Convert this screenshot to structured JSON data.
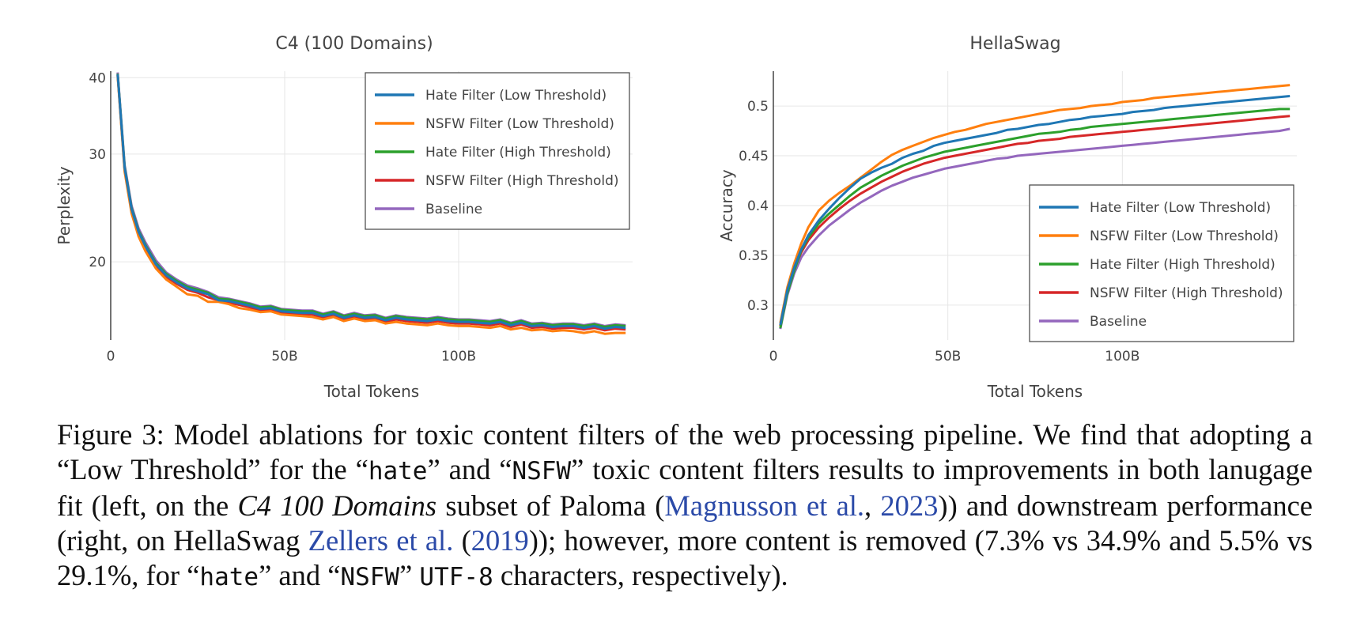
{
  "chart_data": [
    {
      "type": "line",
      "title": "C4 (100 Domains)",
      "xlabel": "Total Tokens",
      "ylabel": "Perplexity",
      "x_unit": "B tokens",
      "xlim": [
        0,
        150
      ],
      "ylim": [
        14.9,
        41
      ],
      "y_scale": "log",
      "xticks": [
        0,
        50,
        100
      ],
      "xtick_labels": [
        "0",
        "50B",
        "100B"
      ],
      "yticks": [
        20,
        30,
        40
      ],
      "ytick_labels": [
        "20",
        "30",
        "40"
      ],
      "grid": true,
      "legend_position": "top-right",
      "x": [
        2,
        4,
        6,
        8,
        10,
        13,
        16,
        19,
        22,
        25,
        28,
        31,
        34,
        37,
        40,
        43,
        46,
        49,
        52,
        55,
        58,
        61,
        64,
        67,
        70,
        73,
        76,
        79,
        82,
        85,
        88,
        91,
        94,
        97,
        100,
        103,
        106,
        109,
        112,
        115,
        118,
        121,
        124,
        127,
        130,
        133,
        136,
        139,
        142,
        145,
        148
      ],
      "series": [
        {
          "name": "Hate Filter (Low Threshold)",
          "color": "#1f77b4",
          "values": [
            40.5,
            28.5,
            24.4,
            22.4,
            21.2,
            19.8,
            19.0,
            18.5,
            18.1,
            17.9,
            17.7,
            17.3,
            17.25,
            17.1,
            16.95,
            16.75,
            16.8,
            16.6,
            16.55,
            16.5,
            16.5,
            16.3,
            16.45,
            16.2,
            16.35,
            16.2,
            16.25,
            16.05,
            16.2,
            16.1,
            16.05,
            16.0,
            16.1,
            16.0,
            15.95,
            15.95,
            15.9,
            15.85,
            15.95,
            15.75,
            15.9,
            15.7,
            15.75,
            15.65,
            15.7,
            15.7,
            15.6,
            15.7,
            15.55,
            15.65,
            15.6
          ]
        },
        {
          "name": "NSFW Filter (Low Threshold)",
          "color": "#ff7f0e",
          "values": [
            40.3,
            28.1,
            24.0,
            22.0,
            20.8,
            19.5,
            18.7,
            18.2,
            17.7,
            17.6,
            17.2,
            17.2,
            17.05,
            16.8,
            16.7,
            16.55,
            16.6,
            16.4,
            16.35,
            16.3,
            16.25,
            16.1,
            16.25,
            16.0,
            16.15,
            16.0,
            16.05,
            15.85,
            15.95,
            15.85,
            15.8,
            15.75,
            15.85,
            15.75,
            15.7,
            15.7,
            15.65,
            15.6,
            15.7,
            15.5,
            15.6,
            15.45,
            15.5,
            15.4,
            15.45,
            15.4,
            15.3,
            15.4,
            15.25,
            15.3,
            15.3
          ]
        },
        {
          "name": "Hate Filter (High Threshold)",
          "color": "#2ca02c",
          "values": [
            40.6,
            28.6,
            24.5,
            22.5,
            21.3,
            19.9,
            19.1,
            18.6,
            18.2,
            18.0,
            17.8,
            17.4,
            17.35,
            17.2,
            17.05,
            16.85,
            16.9,
            16.7,
            16.65,
            16.6,
            16.6,
            16.4,
            16.55,
            16.3,
            16.45,
            16.3,
            16.35,
            16.15,
            16.3,
            16.2,
            16.15,
            16.1,
            16.2,
            16.1,
            16.05,
            16.05,
            16.0,
            15.95,
            16.05,
            15.85,
            16.0,
            15.8,
            15.85,
            15.75,
            15.8,
            15.8,
            15.7,
            15.8,
            15.65,
            15.75,
            15.7
          ]
        },
        {
          "name": "NSFW Filter (High Threshold)",
          "color": "#d62728",
          "values": [
            40.4,
            28.3,
            24.2,
            22.2,
            21.0,
            19.7,
            18.9,
            18.4,
            18.0,
            17.8,
            17.5,
            17.3,
            17.15,
            17.0,
            16.85,
            16.65,
            16.7,
            16.5,
            16.45,
            16.4,
            16.4,
            16.2,
            16.35,
            16.1,
            16.25,
            16.1,
            16.15,
            15.95,
            16.1,
            16.0,
            15.95,
            15.9,
            16.0,
            15.9,
            15.85,
            15.85,
            15.8,
            15.75,
            15.85,
            15.65,
            15.8,
            15.6,
            15.65,
            15.55,
            15.6,
            15.6,
            15.5,
            15.6,
            15.45,
            15.55,
            15.5
          ]
        },
        {
          "name": "Baseline",
          "color": "#9467bd",
          "values": [
            40.8,
            28.8,
            24.7,
            22.7,
            21.5,
            20.1,
            19.2,
            18.7,
            18.3,
            18.1,
            17.85,
            17.5,
            17.4,
            17.25,
            17.1,
            16.9,
            16.95,
            16.75,
            16.7,
            16.65,
            16.65,
            16.45,
            16.6,
            16.35,
            16.5,
            16.35,
            16.4,
            16.2,
            16.35,
            16.25,
            16.2,
            16.15,
            16.25,
            16.15,
            16.1,
            16.1,
            16.05,
            16.0,
            16.1,
            15.9,
            16.05,
            15.85,
            15.9,
            15.8,
            15.85,
            15.85,
            15.75,
            15.85,
            15.7,
            15.8,
            15.75
          ]
        }
      ]
    },
    {
      "type": "line",
      "title": "HellaSwag",
      "xlabel": "Total Tokens",
      "ylabel": "Accuracy",
      "x_unit": "B tokens",
      "xlim": [
        0,
        150
      ],
      "ylim": [
        0.265,
        0.535
      ],
      "xticks": [
        0,
        50,
        100
      ],
      "xtick_labels": [
        "0",
        "50B",
        "100B"
      ],
      "yticks": [
        0.3,
        0.35,
        0.4,
        0.45,
        0.5
      ],
      "ytick_labels": [
        "0.3",
        "0.35",
        "0.4",
        "0.45",
        "0.5"
      ],
      "grid": true,
      "legend_position": "bottom-right",
      "x": [
        2,
        4,
        6,
        8,
        10,
        13,
        16,
        19,
        22,
        25,
        28,
        31,
        34,
        37,
        40,
        43,
        46,
        49,
        52,
        55,
        58,
        61,
        64,
        67,
        70,
        73,
        76,
        79,
        82,
        85,
        88,
        91,
        94,
        97,
        100,
        103,
        106,
        109,
        112,
        115,
        118,
        121,
        124,
        127,
        130,
        133,
        136,
        139,
        142,
        145,
        148
      ],
      "series": [
        {
          "name": "Hate Filter (Low Threshold)",
          "color": "#1f77b4",
          "values": [
            0.28,
            0.315,
            0.338,
            0.356,
            0.37,
            0.385,
            0.397,
            0.408,
            0.418,
            0.427,
            0.433,
            0.438,
            0.442,
            0.448,
            0.452,
            0.455,
            0.46,
            0.463,
            0.465,
            0.467,
            0.469,
            0.471,
            0.473,
            0.476,
            0.477,
            0.479,
            0.481,
            0.482,
            0.484,
            0.486,
            0.487,
            0.489,
            0.49,
            0.491,
            0.492,
            0.494,
            0.495,
            0.496,
            0.498,
            0.499,
            0.5,
            0.501,
            0.502,
            0.503,
            0.504,
            0.505,
            0.506,
            0.507,
            0.508,
            0.509,
            0.51
          ]
        },
        {
          "name": "NSFW Filter (Low Threshold)",
          "color": "#ff7f0e",
          "values": [
            0.282,
            0.318,
            0.342,
            0.362,
            0.378,
            0.395,
            0.405,
            0.413,
            0.42,
            0.428,
            0.436,
            0.444,
            0.451,
            0.456,
            0.46,
            0.464,
            0.468,
            0.471,
            0.474,
            0.476,
            0.479,
            0.482,
            0.484,
            0.486,
            0.488,
            0.49,
            0.492,
            0.494,
            0.496,
            0.497,
            0.498,
            0.5,
            0.501,
            0.502,
            0.504,
            0.505,
            0.506,
            0.508,
            0.509,
            0.51,
            0.511,
            0.512,
            0.513,
            0.514,
            0.515,
            0.516,
            0.517,
            0.518,
            0.519,
            0.52,
            0.521
          ]
        },
        {
          "name": "Hate Filter (High Threshold)",
          "color": "#2ca02c",
          "values": [
            0.277,
            0.312,
            0.335,
            0.355,
            0.368,
            0.382,
            0.392,
            0.401,
            0.41,
            0.418,
            0.424,
            0.43,
            0.435,
            0.44,
            0.444,
            0.448,
            0.451,
            0.454,
            0.456,
            0.458,
            0.46,
            0.462,
            0.464,
            0.466,
            0.468,
            0.47,
            0.472,
            0.473,
            0.474,
            0.476,
            0.477,
            0.479,
            0.48,
            0.481,
            0.482,
            0.483,
            0.484,
            0.485,
            0.486,
            0.487,
            0.488,
            0.489,
            0.49,
            0.491,
            0.492,
            0.493,
            0.494,
            0.495,
            0.496,
            0.497,
            0.497
          ]
        },
        {
          "name": "NSFW Filter (High Threshold)",
          "color": "#d62728",
          "values": [
            0.279,
            0.314,
            0.337,
            0.353,
            0.365,
            0.378,
            0.388,
            0.397,
            0.405,
            0.412,
            0.418,
            0.424,
            0.429,
            0.434,
            0.438,
            0.442,
            0.445,
            0.448,
            0.45,
            0.452,
            0.454,
            0.456,
            0.458,
            0.46,
            0.462,
            0.463,
            0.465,
            0.466,
            0.467,
            0.469,
            0.47,
            0.471,
            0.472,
            0.473,
            0.474,
            0.475,
            0.476,
            0.477,
            0.478,
            0.479,
            0.48,
            0.481,
            0.482,
            0.483,
            0.484,
            0.485,
            0.486,
            0.487,
            0.488,
            0.489,
            0.49
          ]
        },
        {
          "name": "Baseline",
          "color": "#9467bd",
          "values": [
            0.276,
            0.31,
            0.332,
            0.348,
            0.358,
            0.37,
            0.38,
            0.388,
            0.396,
            0.403,
            0.409,
            0.415,
            0.42,
            0.424,
            0.428,
            0.431,
            0.434,
            0.437,
            0.439,
            0.441,
            0.443,
            0.445,
            0.447,
            0.448,
            0.45,
            0.451,
            0.452,
            0.453,
            0.454,
            0.455,
            0.456,
            0.457,
            0.458,
            0.459,
            0.46,
            0.461,
            0.462,
            0.463,
            0.464,
            0.465,
            0.466,
            0.467,
            0.468,
            0.469,
            0.47,
            0.471,
            0.472,
            0.473,
            0.474,
            0.475,
            0.477
          ]
        }
      ]
    }
  ],
  "caption": {
    "p1": "Figure 3: Model ablations for toxic content filters of the web processing pipeline.  We find that adopting a “Low Threshold” for the “",
    "hate1": "hate",
    "p2": "” and “",
    "nsfw1": "NSFW",
    "p3": "” toxic content filters results to improvements in both lanugage fit (left, on the ",
    "c4_italic": "C4 100 Domains",
    "p4": " subset of Paloma (",
    "cite1_name": "Magnusson et al.",
    "cite1_sep": ", ",
    "cite1_year": "2023",
    "p5": ")) and downstream performance (right, on HellaSwag ",
    "cite2_name": "Zellers et al.",
    "cite2_open": " (",
    "cite2_year": "2019",
    "p6": ")); however, more content is removed (7.3% vs 34.9% and 5.5% vs 29.1%, for “",
    "hate2": "hate",
    "p7": "” and “",
    "nsfw2": "NSFW",
    "p8": "” ",
    "utf8": "UTF-8",
    "p9": " characters, respectively)."
  }
}
